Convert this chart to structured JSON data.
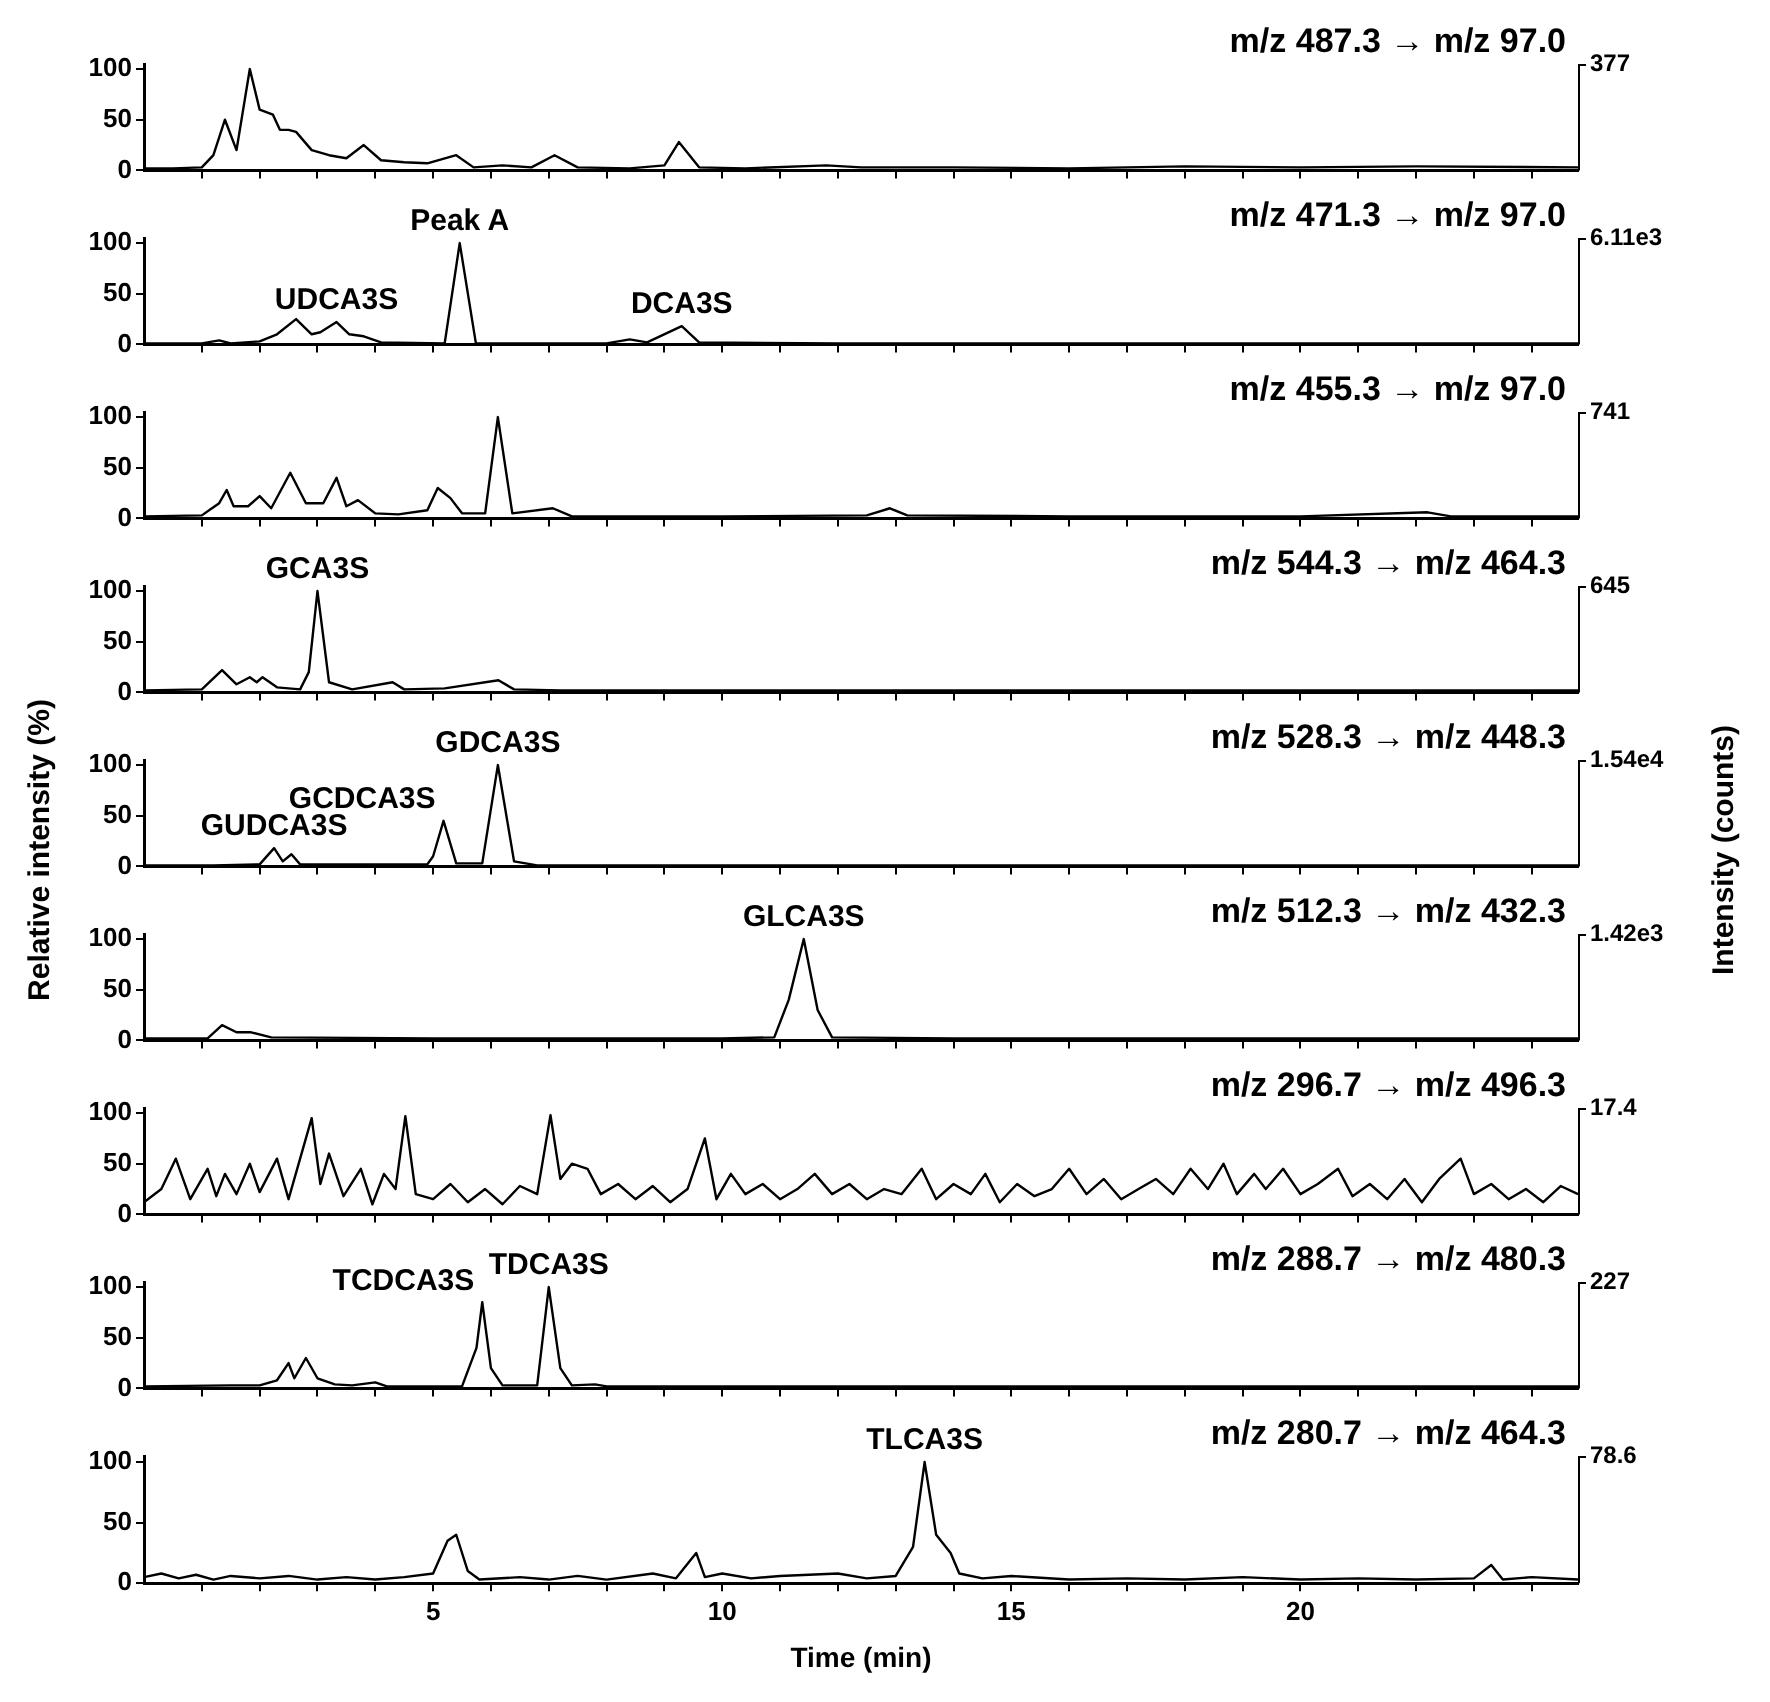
{
  "chart_data": [
    {
      "type": "line",
      "title": "m/z 487.3 → m/z 97.0",
      "color": "#000000",
      "marker": "none",
      "tick_labels": "y",
      "xlim": [
        0,
        24.8
      ],
      "ylim": [
        0,
        105
      ],
      "yticks": [
        0,
        50,
        100
      ],
      "annotations": [
        "377"
      ],
      "xticks": [
        {
          "value": 1,
          "label": null
        },
        {
          "value": 2,
          "label": null
        },
        {
          "value": 3,
          "label": null
        },
        {
          "value": 4,
          "label": null
        },
        5,
        {
          "value": 6,
          "label": null
        },
        {
          "value": 7,
          "label": null
        },
        {
          "value": 8,
          "label": null
        },
        {
          "value": 9,
          "label": null
        },
        10,
        {
          "value": 11,
          "label": null
        },
        {
          "value": 12,
          "label": null
        },
        {
          "value": 13,
          "label": null
        },
        {
          "value": 14,
          "label": null
        },
        15,
        {
          "value": 16,
          "label": null
        },
        {
          "value": 17,
          "label": null
        },
        {
          "value": 18,
          "label": null
        },
        {
          "value": 19,
          "label": null
        },
        20,
        {
          "value": 21,
          "label": null
        },
        {
          "value": 22,
          "label": null
        },
        {
          "value": 23,
          "label": null
        },
        {
          "value": 24,
          "label": null
        }
      ],
      "x": [
        0,
        0.5,
        1.0,
        1.2,
        1.4,
        1.6,
        1.83,
        2.0,
        2.23,
        2.35,
        2.5,
        2.63,
        2.9,
        3.2,
        3.5,
        3.8,
        4.1,
        4.5,
        4.9,
        5.4,
        5.7,
        6.2,
        6.7,
        7.1,
        7.5,
        8.4,
        9.0,
        9.25,
        9.6,
        10.4,
        11.8,
        12.4,
        14,
        16,
        18,
        20,
        22,
        24.8
      ],
      "values": [
        2,
        2,
        3,
        15,
        50,
        20,
        100,
        60,
        55,
        40,
        40,
        38,
        20,
        15,
        12,
        25,
        10,
        8,
        7,
        15,
        3,
        5,
        3,
        15,
        3,
        2,
        5,
        28,
        3,
        2,
        5,
        3,
        3,
        2,
        4,
        3,
        4,
        3
      ]
    },
    {
      "type": "line",
      "title": "m/z 471.3 → m/z 97.0",
      "color": "#000000",
      "marker": "none",
      "tick_labels": "y",
      "xlim": [
        0,
        24.8
      ],
      "ylim": [
        0,
        105
      ],
      "yticks": [
        0,
        50,
        100
      ],
      "xticks": [
        {
          "value": 1,
          "label": null
        },
        {
          "value": 2,
          "label": null
        },
        {
          "value": 3,
          "label": null
        },
        {
          "value": 4,
          "label": null
        },
        5,
        {
          "value": 6,
          "label": null
        },
        {
          "value": 7,
          "label": null
        },
        {
          "value": 8,
          "label": null
        },
        {
          "value": 9,
          "label": null
        },
        10,
        {
          "value": 11,
          "label": null
        },
        {
          "value": 12,
          "label": null
        },
        {
          "value": 13,
          "label": null
        },
        {
          "value": 14,
          "label": null
        },
        15,
        {
          "value": 16,
          "label": null
        },
        {
          "value": 17,
          "label": null
        },
        {
          "value": 18,
          "label": null
        },
        {
          "value": 19,
          "label": null
        },
        20,
        {
          "value": 21,
          "label": null
        },
        {
          "value": 22,
          "label": null
        },
        {
          "value": 23,
          "label": null
        },
        {
          "value": 24,
          "label": null
        }
      ],
      "x": [
        0,
        1.0,
        1.3,
        1.5,
        2.0,
        2.3,
        2.63,
        2.9,
        3.05,
        3.33,
        3.55,
        3.8,
        4.1,
        5.2,
        5.46,
        5.74,
        8.0,
        8.4,
        8.7,
        9.3,
        9.6,
        12,
        16,
        20,
        24.8
      ],
      "values": [
        1,
        1,
        4,
        1,
        3,
        10,
        25,
        10,
        12,
        22,
        10,
        8,
        2,
        1,
        100,
        1,
        1,
        5,
        2,
        18,
        2,
        1,
        1,
        1,
        1
      ],
      "annotations": [
        "6.11e3",
        {
          "text": "UDCA3S",
          "x": 3.33,
          "y": 22
        },
        {
          "text": "Peak A",
          "x": 5.46,
          "y": 100
        },
        {
          "text": "DCA3S",
          "x": 9.3,
          "y": 18
        }
      ]
    },
    {
      "type": "line",
      "title": "m/z 455.3 → m/z 97.0",
      "color": "#000000",
      "marker": "none",
      "tick_labels": "y",
      "xlim": [
        0,
        24.8
      ],
      "ylim": [
        0,
        105
      ],
      "yticks": [
        0,
        50,
        100
      ],
      "annotations": [
        "741"
      ],
      "xticks": [
        {
          "value": 1,
          "label": null
        },
        {
          "value": 2,
          "label": null
        },
        {
          "value": 3,
          "label": null
        },
        {
          "value": 4,
          "label": null
        },
        5,
        {
          "value": 6,
          "label": null
        },
        {
          "value": 7,
          "label": null
        },
        {
          "value": 8,
          "label": null
        },
        {
          "value": 9,
          "label": null
        },
        10,
        {
          "value": 11,
          "label": null
        },
        {
          "value": 12,
          "label": null
        },
        {
          "value": 13,
          "label": null
        },
        {
          "value": 14,
          "label": null
        },
        15,
        {
          "value": 16,
          "label": null
        },
        {
          "value": 17,
          "label": null
        },
        {
          "value": 18,
          "label": null
        },
        {
          "value": 19,
          "label": null
        },
        20,
        {
          "value": 21,
          "label": null
        },
        {
          "value": 22,
          "label": null
        },
        {
          "value": 23,
          "label": null
        },
        {
          "value": 24,
          "label": null
        }
      ],
      "x": [
        0,
        1.0,
        1.3,
        1.43,
        1.55,
        1.8,
        2.0,
        2.2,
        2.53,
        2.8,
        3.1,
        3.33,
        3.5,
        3.7,
        4.0,
        4.4,
        4.9,
        5.08,
        5.3,
        5.5,
        5.9,
        6.12,
        6.37,
        7.07,
        7.4,
        10,
        12.5,
        12.9,
        13.2,
        16,
        20,
        22.2,
        22.6,
        24.8
      ],
      "values": [
        2,
        3,
        15,
        28,
        12,
        12,
        22,
        10,
        45,
        15,
        15,
        40,
        12,
        18,
        5,
        4,
        8,
        30,
        20,
        5,
        5,
        100,
        5,
        10,
        2,
        2,
        3,
        10,
        3,
        2,
        2,
        6,
        2,
        2
      ]
    },
    {
      "type": "line",
      "title": "m/z 544.3 → m/z 464.3",
      "color": "#000000",
      "marker": "none",
      "tick_labels": "y",
      "xlim": [
        0,
        24.8
      ],
      "ylim": [
        0,
        105
      ],
      "yticks": [
        0,
        50,
        100
      ],
      "xticks": [
        {
          "value": 1,
          "label": null
        },
        {
          "value": 2,
          "label": null
        },
        {
          "value": 3,
          "label": null
        },
        {
          "value": 4,
          "label": null
        },
        5,
        {
          "value": 6,
          "label": null
        },
        {
          "value": 7,
          "label": null
        },
        {
          "value": 8,
          "label": null
        },
        {
          "value": 9,
          "label": null
        },
        10,
        {
          "value": 11,
          "label": null
        },
        {
          "value": 12,
          "label": null
        },
        {
          "value": 13,
          "label": null
        },
        {
          "value": 14,
          "label": null
        },
        15,
        {
          "value": 16,
          "label": null
        },
        {
          "value": 17,
          "label": null
        },
        {
          "value": 18,
          "label": null
        },
        {
          "value": 19,
          "label": null
        },
        20,
        {
          "value": 21,
          "label": null
        },
        {
          "value": 22,
          "label": null
        },
        {
          "value": 23,
          "label": null
        },
        {
          "value": 24,
          "label": null
        }
      ],
      "x": [
        0,
        1.0,
        1.35,
        1.6,
        1.83,
        1.95,
        2.05,
        2.3,
        2.7,
        2.85,
        3.0,
        3.2,
        3.6,
        4.3,
        4.5,
        5.2,
        6.13,
        6.4,
        7.2,
        12,
        18,
        24.8
      ],
      "values": [
        2,
        3,
        22,
        8,
        15,
        10,
        15,
        5,
        3,
        20,
        100,
        10,
        3,
        10,
        3,
        4,
        12,
        3,
        2,
        2,
        2,
        2
      ],
      "annotations": [
        "645",
        {
          "text": "GCA3S",
          "x": 3.0,
          "y": 100
        }
      ]
    },
    {
      "type": "line",
      "title": "m/z 528.3 → m/z 448.3",
      "ylabel": "Relative intensity (%)",
      "y2label": "Intensity (counts)",
      "color": "#000000",
      "marker": "none",
      "tick_labels": "y",
      "xlim": [
        0,
        24.8
      ],
      "ylim": [
        0,
        105
      ],
      "yticks": [
        0,
        50,
        100
      ],
      "xticks": [
        {
          "value": 1,
          "label": null
        },
        {
          "value": 2,
          "label": null
        },
        {
          "value": 3,
          "label": null
        },
        {
          "value": 4,
          "label": null
        },
        5,
        {
          "value": 6,
          "label": null
        },
        {
          "value": 7,
          "label": null
        },
        {
          "value": 8,
          "label": null
        },
        {
          "value": 9,
          "label": null
        },
        10,
        {
          "value": 11,
          "label": null
        },
        {
          "value": 12,
          "label": null
        },
        {
          "value": 13,
          "label": null
        },
        {
          "value": 14,
          "label": null
        },
        15,
        {
          "value": 16,
          "label": null
        },
        {
          "value": 17,
          "label": null
        },
        {
          "value": 18,
          "label": null
        },
        {
          "value": 19,
          "label": null
        },
        20,
        {
          "value": 21,
          "label": null
        },
        {
          "value": 22,
          "label": null
        },
        {
          "value": 23,
          "label": null
        },
        {
          "value": 24,
          "label": null
        }
      ],
      "x": [
        0,
        1.2,
        2.0,
        2.25,
        2.4,
        2.55,
        2.7,
        4.9,
        5.0,
        5.18,
        5.4,
        5.85,
        6.12,
        6.4,
        6.8,
        12,
        18,
        24.8
      ],
      "values": [
        1,
        1,
        2,
        18,
        5,
        12,
        2,
        2,
        10,
        45,
        3,
        3,
        100,
        5,
        1,
        1,
        1,
        1
      ],
      "annotations": [
        "1.54e4",
        {
          "text": "GUDCA3S",
          "x": 2.25,
          "y": 18
        },
        {
          "text": "GCDCA3S",
          "x": 5.18,
          "y": 45
        },
        {
          "text": "GDCA3S",
          "x": 6.12,
          "y": 100
        }
      ]
    },
    {
      "type": "line",
      "title": "m/z 512.3 → m/z 432.3",
      "color": "#000000",
      "marker": "none",
      "tick_labels": "y",
      "xlim": [
        0,
        24.8
      ],
      "ylim": [
        0,
        105
      ],
      "yticks": [
        0,
        50,
        100
      ],
      "xticks": [
        {
          "value": 1,
          "label": null
        },
        {
          "value": 2,
          "label": null
        },
        {
          "value": 3,
          "label": null
        },
        {
          "value": 4,
          "label": null
        },
        5,
        {
          "value": 6,
          "label": null
        },
        {
          "value": 7,
          "label": null
        },
        {
          "value": 8,
          "label": null
        },
        {
          "value": 9,
          "label": null
        },
        10,
        {
          "value": 11,
          "label": null
        },
        {
          "value": 12,
          "label": null
        },
        {
          "value": 13,
          "label": null
        },
        {
          "value": 14,
          "label": null
        },
        15,
        {
          "value": 16,
          "label": null
        },
        {
          "value": 17,
          "label": null
        },
        {
          "value": 18,
          "label": null
        },
        {
          "value": 19,
          "label": null
        },
        20,
        {
          "value": 21,
          "label": null
        },
        {
          "value": 22,
          "label": null
        },
        {
          "value": 23,
          "label": null
        },
        {
          "value": 24,
          "label": null
        }
      ],
      "x": [
        0,
        1.1,
        1.35,
        1.6,
        1.85,
        2.2,
        5,
        10,
        10.9,
        11.15,
        11.41,
        11.65,
        11.9,
        14,
        18,
        24.8
      ],
      "values": [
        2,
        2,
        15,
        8,
        8,
        3,
        2,
        2,
        3,
        40,
        100,
        30,
        3,
        2,
        2,
        2
      ],
      "annotations": [
        "1.42e3",
        {
          "text": "GLCA3S",
          "x": 11.41,
          "y": 100
        }
      ]
    },
    {
      "type": "line",
      "title": "m/z 296.7 → m/z 496.3",
      "color": "#000000",
      "marker": "none",
      "tick_labels": "y",
      "xlim": [
        0,
        24.8
      ],
      "ylim": [
        0,
        105
      ],
      "yticks": [
        0,
        50,
        100
      ],
      "annotations": [
        "17.4"
      ],
      "xticks": [
        {
          "value": 1,
          "label": null
        },
        {
          "value": 2,
          "label": null
        },
        {
          "value": 3,
          "label": null
        },
        {
          "value": 4,
          "label": null
        },
        5,
        {
          "value": 6,
          "label": null
        },
        {
          "value": 7,
          "label": null
        },
        {
          "value": 8,
          "label": null
        },
        {
          "value": 9,
          "label": null
        },
        10,
        {
          "value": 11,
          "label": null
        },
        {
          "value": 12,
          "label": null
        },
        {
          "value": 13,
          "label": null
        },
        {
          "value": 14,
          "label": null
        },
        15,
        {
          "value": 16,
          "label": null
        },
        {
          "value": 17,
          "label": null
        },
        {
          "value": 18,
          "label": null
        },
        {
          "value": 19,
          "label": null
        },
        20,
        {
          "value": 21,
          "label": null
        },
        {
          "value": 22,
          "label": null
        },
        {
          "value": 23,
          "label": null
        },
        {
          "value": 24,
          "label": null
        }
      ],
      "x": [
        0,
        0.3,
        0.55,
        0.8,
        1.1,
        1.25,
        1.4,
        1.6,
        1.83,
        2.0,
        2.3,
        2.5,
        2.9,
        3.05,
        3.2,
        3.45,
        3.75,
        3.95,
        4.15,
        4.35,
        4.52,
        4.7,
        5.0,
        5.3,
        5.6,
        5.9,
        6.2,
        6.5,
        6.8,
        7.03,
        7.2,
        7.4,
        7.67,
        7.9,
        8.2,
        8.5,
        8.8,
        9.1,
        9.4,
        9.7,
        9.9,
        10.15,
        10.4,
        10.7,
        11.0,
        11.3,
        11.6,
        11.9,
        12.2,
        12.5,
        12.8,
        13.1,
        13.45,
        13.7,
        14.0,
        14.3,
        14.55,
        14.8,
        15.1,
        15.4,
        15.7,
        16.0,
        16.3,
        16.6,
        16.9,
        17.2,
        17.5,
        17.8,
        18.1,
        18.4,
        18.67,
        18.9,
        19.2,
        19.4,
        19.7,
        20.0,
        20.3,
        20.65,
        20.9,
        21.2,
        21.5,
        21.8,
        22.1,
        22.4,
        22.77,
        23.0,
        23.3,
        23.6,
        23.9,
        24.2,
        24.5,
        24.8
      ],
      "values": [
        12,
        25,
        55,
        15,
        45,
        18,
        40,
        20,
        50,
        22,
        55,
        15,
        95,
        30,
        60,
        18,
        45,
        10,
        40,
        25,
        97,
        20,
        15,
        30,
        12,
        25,
        10,
        28,
        20,
        98,
        35,
        50,
        45,
        20,
        30,
        15,
        28,
        12,
        25,
        75,
        15,
        40,
        20,
        30,
        15,
        25,
        40,
        20,
        30,
        15,
        25,
        20,
        45,
        15,
        30,
        20,
        40,
        12,
        30,
        18,
        25,
        45,
        20,
        35,
        15,
        25,
        35,
        20,
        45,
        25,
        50,
        20,
        40,
        25,
        45,
        20,
        30,
        45,
        18,
        30,
        15,
        35,
        12,
        35,
        55,
        20,
        30,
        15,
        25,
        12,
        28,
        20
      ]
    },
    {
      "type": "line",
      "title": "m/z 288.7 → m/z 480.3",
      "color": "#000000",
      "marker": "none",
      "tick_labels": "y",
      "xlim": [
        0,
        24.8
      ],
      "ylim": [
        0,
        105
      ],
      "yticks": [
        0,
        50,
        100
      ],
      "xticks": [
        {
          "value": 1,
          "label": null
        },
        {
          "value": 2,
          "label": null
        },
        {
          "value": 3,
          "label": null
        },
        {
          "value": 4,
          "label": null
        },
        5,
        {
          "value": 6,
          "label": null
        },
        {
          "value": 7,
          "label": null
        },
        {
          "value": 8,
          "label": null
        },
        {
          "value": 9,
          "label": null
        },
        10,
        {
          "value": 11,
          "label": null
        },
        {
          "value": 12,
          "label": null
        },
        {
          "value": 13,
          "label": null
        },
        {
          "value": 14,
          "label": null
        },
        15,
        {
          "value": 16,
          "label": null
        },
        {
          "value": 17,
          "label": null
        },
        {
          "value": 18,
          "label": null
        },
        {
          "value": 19,
          "label": null
        },
        20,
        {
          "value": 21,
          "label": null
        },
        {
          "value": 22,
          "label": null
        },
        {
          "value": 23,
          "label": null
        },
        {
          "value": 24,
          "label": null
        }
      ],
      "x": [
        0,
        1.5,
        2.0,
        2.3,
        2.5,
        2.6,
        2.8,
        3.0,
        3.3,
        3.6,
        4.0,
        4.2,
        5.5,
        5.75,
        5.85,
        6.0,
        6.2,
        6.8,
        7.0,
        7.2,
        7.4,
        7.8,
        8.0,
        14,
        20,
        24.8
      ],
      "values": [
        2,
        3,
        3,
        8,
        25,
        10,
        30,
        10,
        4,
        3,
        6,
        2,
        2,
        40,
        85,
        20,
        3,
        3,
        100,
        20,
        3,
        4,
        2,
        2,
        2,
        2
      ],
      "annotations": [
        "227",
        {
          "text": "TCDCA3S",
          "x": 5.85,
          "y": 85
        },
        {
          "text": "TDCA3S",
          "x": 7.0,
          "y": 100
        }
      ]
    },
    {
      "type": "line",
      "title": "m/z 280.7 → m/z 464.3",
      "xlabel": "Time (min)",
      "color": "#000000",
      "marker": "none",
      "xlim": [
        0,
        24.8
      ],
      "ylim": [
        0,
        105
      ],
      "yticks": [
        0,
        50,
        100
      ],
      "xticks": [
        {
          "value": 1,
          "label": null
        },
        {
          "value": 2,
          "label": null
        },
        {
          "value": 3,
          "label": null
        },
        {
          "value": 4,
          "label": null
        },
        5,
        {
          "value": 6,
          "label": null
        },
        {
          "value": 7,
          "label": null
        },
        {
          "value": 8,
          "label": null
        },
        {
          "value": 9,
          "label": null
        },
        10,
        {
          "value": 11,
          "label": null
        },
        {
          "value": 12,
          "label": null
        },
        {
          "value": 13,
          "label": null
        },
        {
          "value": 14,
          "label": null
        },
        15,
        {
          "value": 16,
          "label": null
        },
        {
          "value": 17,
          "label": null
        },
        {
          "value": 18,
          "label": null
        },
        {
          "value": 19,
          "label": null
        },
        20,
        {
          "value": 21,
          "label": null
        },
        {
          "value": 22,
          "label": null
        },
        {
          "value": 23,
          "label": null
        },
        {
          "value": 24,
          "label": null
        }
      ],
      "x": [
        0,
        0.3,
        0.6,
        0.9,
        1.2,
        1.5,
        2,
        2.5,
        3,
        3.5,
        4,
        4.5,
        5.0,
        5.25,
        5.4,
        5.6,
        5.8,
        6.5,
        7,
        7.5,
        8,
        8.8,
        9.2,
        9.55,
        9.7,
        10,
        10.5,
        11,
        12,
        12.5,
        13.0,
        13.3,
        13.5,
        13.7,
        13.95,
        14.1,
        14.5,
        15,
        16,
        17,
        18,
        19,
        20,
        21,
        22,
        23,
        23.3,
        23.5,
        24,
        24.8
      ],
      "values": [
        5,
        8,
        4,
        7,
        3,
        6,
        4,
        6,
        3,
        5,
        3,
        5,
        8,
        35,
        40,
        10,
        3,
        5,
        3,
        6,
        3,
        8,
        4,
        25,
        5,
        8,
        4,
        6,
        8,
        4,
        6,
        30,
        100,
        40,
        25,
        8,
        4,
        6,
        3,
        4,
        3,
        5,
        3,
        4,
        3,
        4,
        15,
        3,
        5,
        3
      ],
      "annotations": [
        "78.6",
        {
          "text": "TLCA3S",
          "x": 13.5,
          "y": 100
        }
      ]
    }
  ]
}
